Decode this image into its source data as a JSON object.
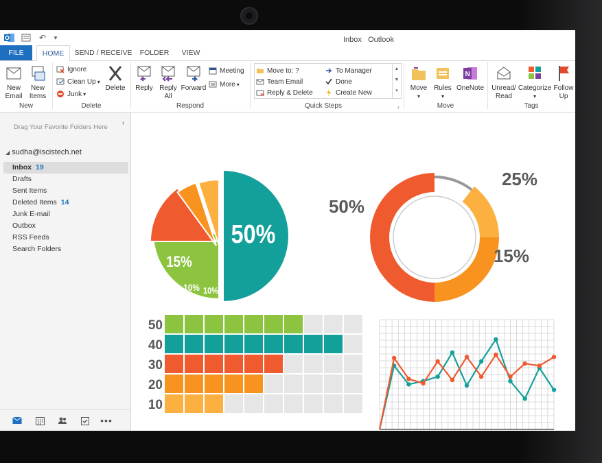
{
  "window": {
    "title": "Inbox   Outlook"
  },
  "tabs": [
    {
      "label": "FILE"
    },
    {
      "label": "HOME"
    },
    {
      "label": "SEND / RECEIVE"
    },
    {
      "label": "FOLDER"
    },
    {
      "label": "VIEW"
    }
  ],
  "ribbon": {
    "new": {
      "new_email": "New\nEmail",
      "new_items": "New\nItems",
      "group": "New"
    },
    "delete": {
      "ignore": "Ignore",
      "clean_up": "Clean Up",
      "junk": "Junk",
      "delete": "Delete",
      "group": "Delete"
    },
    "respond": {
      "reply": "Reply",
      "reply_all": "Reply\nAll",
      "forward": "Forward",
      "meeting": "Meeting",
      "more": "More",
      "group": "Respond"
    },
    "quick_steps": {
      "items": [
        "Move to: ?",
        "Team Email",
        "Reply & Delete",
        "To Manager",
        "Done",
        "Create New"
      ],
      "group": "Quick Steps"
    },
    "move": {
      "move": "Move",
      "rules": "Rules",
      "onenote": "OneNote",
      "group": "Move"
    },
    "tags": {
      "unread_read": "Unread/\nRead",
      "categorize": "Categorize",
      "follow_up": "Follow\nUp",
      "group": "Tags"
    }
  },
  "left_pane": {
    "drag_hint": "Drag Your Favorite Folders Here",
    "account": "sudha@iscistech.net",
    "folders": [
      {
        "name": "Inbox",
        "count": "19"
      },
      {
        "name": "Drafts",
        "count": ""
      },
      {
        "name": "Sent Items",
        "count": ""
      },
      {
        "name": "Deleted Items",
        "count": "14"
      },
      {
        "name": "Junk E-mail",
        "count": ""
      },
      {
        "name": "Outbox",
        "count": ""
      },
      {
        "name": "RSS Feeds",
        "count": ""
      },
      {
        "name": "Search Folders",
        "count": ""
      }
    ]
  },
  "colors": {
    "teal": "#14a09a",
    "green": "#8cc43f",
    "red_orange": "#ef5a2f",
    "orange": "#f7931e",
    "light_orange": "#fbb040",
    "grid": "#e6e6e6",
    "accent_blue": "#1e6fc0"
  },
  "chart_data": [
    {
      "type": "pie",
      "slices": [
        {
          "label": "50%",
          "value": 50,
          "color": "#14a09a"
        },
        {
          "label": "25%",
          "value": 25,
          "color": "#8cc43f"
        },
        {
          "label": "15%",
          "value": 15,
          "color": "#ef5a2f"
        },
        {
          "label": "10%",
          "value": 10,
          "color": "#f7931e"
        },
        {
          "label": "10%",
          "value": 10,
          "color": "#fbb040"
        }
      ]
    },
    {
      "type": "pie",
      "style": "donut",
      "slices": [
        {
          "label": "50%",
          "value": 50,
          "color": "#ef5a2f"
        },
        {
          "label": "25%",
          "value": 25,
          "color": "#f7931e"
        },
        {
          "label": "15%",
          "value": 15,
          "color": "#fbb040"
        }
      ]
    },
    {
      "type": "bar",
      "orientation": "horizontal",
      "categories": [
        "50",
        "40",
        "30",
        "20",
        "10"
      ],
      "values": [
        7,
        9,
        6,
        5,
        3
      ],
      "total_cells": 10,
      "colors": [
        "#8cc43f",
        "#14a09a",
        "#ef5a2f",
        "#f7931e",
        "#fbb040"
      ]
    },
    {
      "type": "line",
      "x": [
        0,
        1,
        2,
        3,
        4,
        5,
        6,
        7,
        8,
        9,
        10,
        11,
        12
      ],
      "series": [
        {
          "values": [
            0,
            58,
            41,
            44,
            48,
            70,
            40,
            62,
            82,
            44,
            28,
            56,
            36
          ],
          "color": "#14a09a"
        },
        {
          "values": [
            0,
            65,
            46,
            42,
            62,
            45,
            66,
            48,
            68,
            48,
            60,
            58,
            66
          ],
          "color": "#ef5a2f"
        }
      ],
      "grid": true
    }
  ]
}
